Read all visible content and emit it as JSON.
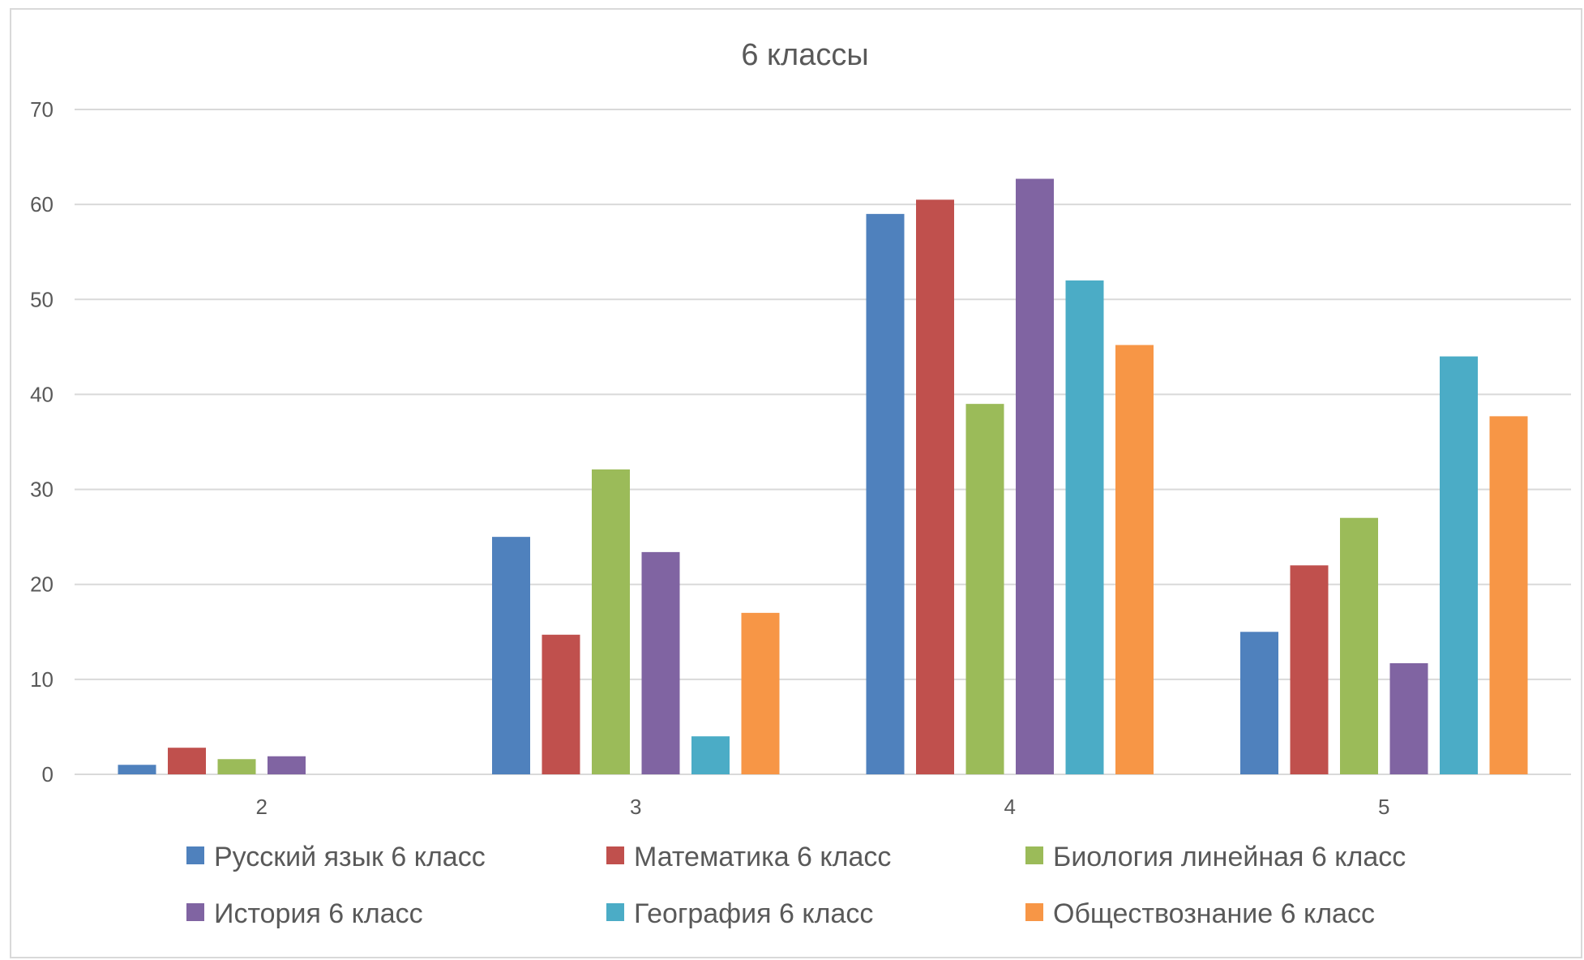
{
  "chart_data": {
    "type": "bar",
    "title": "6 классы",
    "categories": [
      "2",
      "3",
      "4",
      "5"
    ],
    "series": [
      {
        "name": "Русский язык 6 класс",
        "color": "#4f81bd",
        "values": [
          1,
          25,
          59,
          15
        ]
      },
      {
        "name": "Математика 6 класс",
        "color": "#c0504d",
        "values": [
          2.8,
          14.7,
          60.5,
          22
        ]
      },
      {
        "name": "Биология линейная 6 класс",
        "color": "#9bbb59",
        "values": [
          1.6,
          32.1,
          39,
          27
        ]
      },
      {
        "name": "История 6 класс",
        "color": "#8064a2",
        "values": [
          1.9,
          23.4,
          62.7,
          11.7
        ]
      },
      {
        "name": "География 6 класс",
        "color": "#4bacc6",
        "values": [
          0,
          4,
          52,
          44
        ]
      },
      {
        "name": "Обществознание 6 класс",
        "color": "#f79646",
        "values": [
          0,
          17,
          45.2,
          37.7
        ]
      }
    ],
    "yticks": [
      "0",
      "10",
      "20",
      "30",
      "40",
      "50",
      "60",
      "70"
    ],
    "ylim": [
      0,
      70
    ],
    "grid": true,
    "legend": "bottom"
  }
}
